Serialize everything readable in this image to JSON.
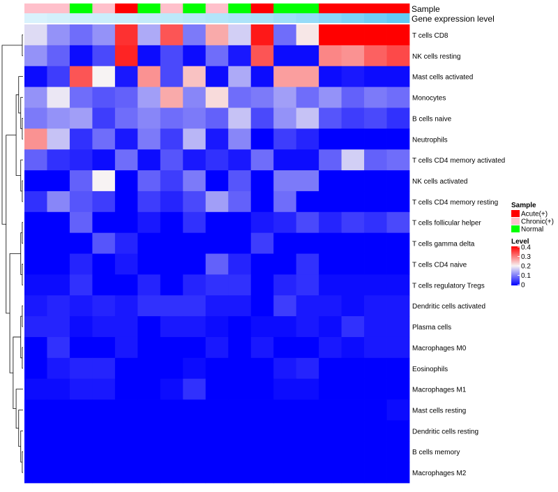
{
  "chart_data": {
    "type": "heatmap",
    "title": "",
    "annotation_labels": [
      "Sample",
      "Gene expression level"
    ],
    "sample_annotation": [
      "Chronic(+)",
      "Chronic(+)",
      "Normal",
      "Chronic(+)",
      "Acute(+)",
      "Normal",
      "Chronic(+)",
      "Normal",
      "Chronic(+)",
      "Normal",
      "Acute(+)",
      "Normal",
      "Normal",
      "Acute(+)",
      "Acute(+)",
      "Acute(+)",
      "Acute(+)"
    ],
    "expression_level_annotation": [
      0.05,
      0.1,
      0.14,
      0.16,
      0.18,
      0.22,
      0.26,
      0.3,
      0.34,
      0.38,
      0.42,
      0.5,
      0.56,
      0.66,
      0.76,
      0.86,
      0.95
    ],
    "rows": [
      "T cells CD8",
      "NK cells resting",
      "Mast cells activated",
      "Monocytes",
      "B cells naive",
      "Neutrophils",
      "T cells CD4 memory activated",
      "NK cells activated",
      "T cells CD4 memory resting",
      "T cells follicular helper",
      "T cells gamma delta",
      "T cells CD4 naive",
      "T cells regulatory  Tregs",
      "Dendritic cells activated",
      "Plasma cells",
      "Macrophages M0",
      "Eosinophils",
      "Macrophages M1",
      "Mast cells resting",
      "Dendritic cells resting",
      "B cells memory",
      "Macrophages M2"
    ],
    "values": [
      [
        0.18,
        0.12,
        0.09,
        0.12,
        0.36,
        0.14,
        0.33,
        0.1,
        0.26,
        0.17,
        0.38,
        0.09,
        0.21,
        0.4,
        0.4,
        0.4,
        0.4
      ],
      [
        0.12,
        0.08,
        0.01,
        0.06,
        0.37,
        0.01,
        0.06,
        0.01,
        0.09,
        0.02,
        0.33,
        0.01,
        0.01,
        0.29,
        0.28,
        0.32,
        0.34
      ],
      [
        0.01,
        0.05,
        0.33,
        0.2,
        0.02,
        0.28,
        0.06,
        0.24,
        0.01,
        0.14,
        0.01,
        0.27,
        0.27,
        0.01,
        0.02,
        0.01,
        0.01
      ],
      [
        0.12,
        0.19,
        0.09,
        0.07,
        0.08,
        0.13,
        0.26,
        0.11,
        0.22,
        0.09,
        0.1,
        0.13,
        0.09,
        0.12,
        0.08,
        0.1,
        0.09
      ],
      [
        0.1,
        0.12,
        0.13,
        0.05,
        0.09,
        0.11,
        0.09,
        0.1,
        0.08,
        0.16,
        0.06,
        0.12,
        0.16,
        0.07,
        0.05,
        0.06,
        0.04
      ],
      [
        0.28,
        0.16,
        0.04,
        0.09,
        0.02,
        0.1,
        0.05,
        0.15,
        0.02,
        0.11,
        0.0,
        0.05,
        0.03,
        0.0,
        0.0,
        0.0,
        0.0
      ],
      [
        0.08,
        0.04,
        0.03,
        0.01,
        0.09,
        0.01,
        0.07,
        0.02,
        0.04,
        0.02,
        0.09,
        0.01,
        0.01,
        0.08,
        0.17,
        0.08,
        0.09
      ],
      [
        0.0,
        0.0,
        0.08,
        0.2,
        0.0,
        0.08,
        0.05,
        0.1,
        0.0,
        0.07,
        0.0,
        0.1,
        0.1,
        0.0,
        0.0,
        0.0,
        0.0
      ],
      [
        0.04,
        0.11,
        0.07,
        0.05,
        0.0,
        0.05,
        0.03,
        0.06,
        0.13,
        0.08,
        0.0,
        0.09,
        0.0,
        0.0,
        0.0,
        0.0,
        0.0
      ],
      [
        0.0,
        0.0,
        0.08,
        0.0,
        0.0,
        0.02,
        0.0,
        0.04,
        0.0,
        0.0,
        0.02,
        0.03,
        0.06,
        0.03,
        0.05,
        0.04,
        0.06
      ],
      [
        0.0,
        0.0,
        0.0,
        0.07,
        0.03,
        0.0,
        0.0,
        0.0,
        0.0,
        0.0,
        0.05,
        0.0,
        0.0,
        0.0,
        0.0,
        0.0,
        0.0
      ],
      [
        0.0,
        0.0,
        0.03,
        0.0,
        0.02,
        0.0,
        0.0,
        0.0,
        0.08,
        0.03,
        0.0,
        0.0,
        0.04,
        0.0,
        0.0,
        0.0,
        0.0
      ],
      [
        0.01,
        0.01,
        0.04,
        0.0,
        0.0,
        0.03,
        0.0,
        0.03,
        0.04,
        0.04,
        0.0,
        0.03,
        0.04,
        0.01,
        0.01,
        0.01,
        0.01
      ],
      [
        0.02,
        0.03,
        0.02,
        0.03,
        0.02,
        0.04,
        0.04,
        0.04,
        0.02,
        0.02,
        0.0,
        0.05,
        0.02,
        0.02,
        0.01,
        0.02,
        0.02
      ],
      [
        0.03,
        0.03,
        0.01,
        0.02,
        0.02,
        0.0,
        0.02,
        0.02,
        0.01,
        0.0,
        0.01,
        0.01,
        0.02,
        0.01,
        0.04,
        0.02,
        0.02
      ],
      [
        0.0,
        0.04,
        0.0,
        0.0,
        0.02,
        0.0,
        0.0,
        0.0,
        0.02,
        0.0,
        0.02,
        0.0,
        0.0,
        0.02,
        0.01,
        0.02,
        0.02
      ],
      [
        0.0,
        0.02,
        0.03,
        0.03,
        0.0,
        0.0,
        0.0,
        0.01,
        0.0,
        0.0,
        0.0,
        0.02,
        0.03,
        0.0,
        0.0,
        0.0,
        0.0
      ],
      [
        0.01,
        0.01,
        0.02,
        0.02,
        0.0,
        0.0,
        0.01,
        0.04,
        0.0,
        0.0,
        0.0,
        0.01,
        0.01,
        0.0,
        0.0,
        0.0,
        0.0
      ],
      [
        0.0,
        0.0,
        0.0,
        0.0,
        0.0,
        0.0,
        0.0,
        0.0,
        0.0,
        0.0,
        0.0,
        0.0,
        0.0,
        0.0,
        0.0,
        0.0,
        0.01
      ],
      [
        0.0,
        0.0,
        0.0,
        0.0,
        0.0,
        0.0,
        0.0,
        0.0,
        0.0,
        0.0,
        0.0,
        0.0,
        0.0,
        0.0,
        0.0,
        0.0,
        0.0
      ],
      [
        0.0,
        0.0,
        0.0,
        0.0,
        0.0,
        0.0,
        0.0,
        0.0,
        0.0,
        0.0,
        0.0,
        0.0,
        0.0,
        0.0,
        0.0,
        0.0,
        0.0
      ],
      [
        0.0,
        0.0,
        0.0,
        0.0,
        0.0,
        0.0,
        0.0,
        0.0,
        0.0,
        0.0,
        0.0,
        0.0,
        0.0,
        0.0,
        0.0,
        0.0,
        0.0
      ]
    ],
    "color_scale": {
      "min": 0,
      "mid": 0.2,
      "max": 0.4,
      "low_color": "#0000ff",
      "mid_color": "#f7f3f3",
      "high_color": "#ff0000"
    },
    "legend": {
      "placement": "right",
      "sample_title": "Sample",
      "sample_entries": [
        {
          "label": "Acute(+)",
          "color": "#ff0000"
        },
        {
          "label": "Chronic(+)",
          "color": "#ffc0cb"
        },
        {
          "label": "Normal",
          "color": "#00ff00"
        }
      ],
      "level_title": "Level",
      "level_ticks": [
        "0.4",
        "0.3",
        "0.2",
        "0.1",
        "0"
      ]
    },
    "row_dendrogram": true,
    "expression_bar_colors": {
      "low": "#e0f4fc",
      "high": "#5bc8f5"
    }
  }
}
